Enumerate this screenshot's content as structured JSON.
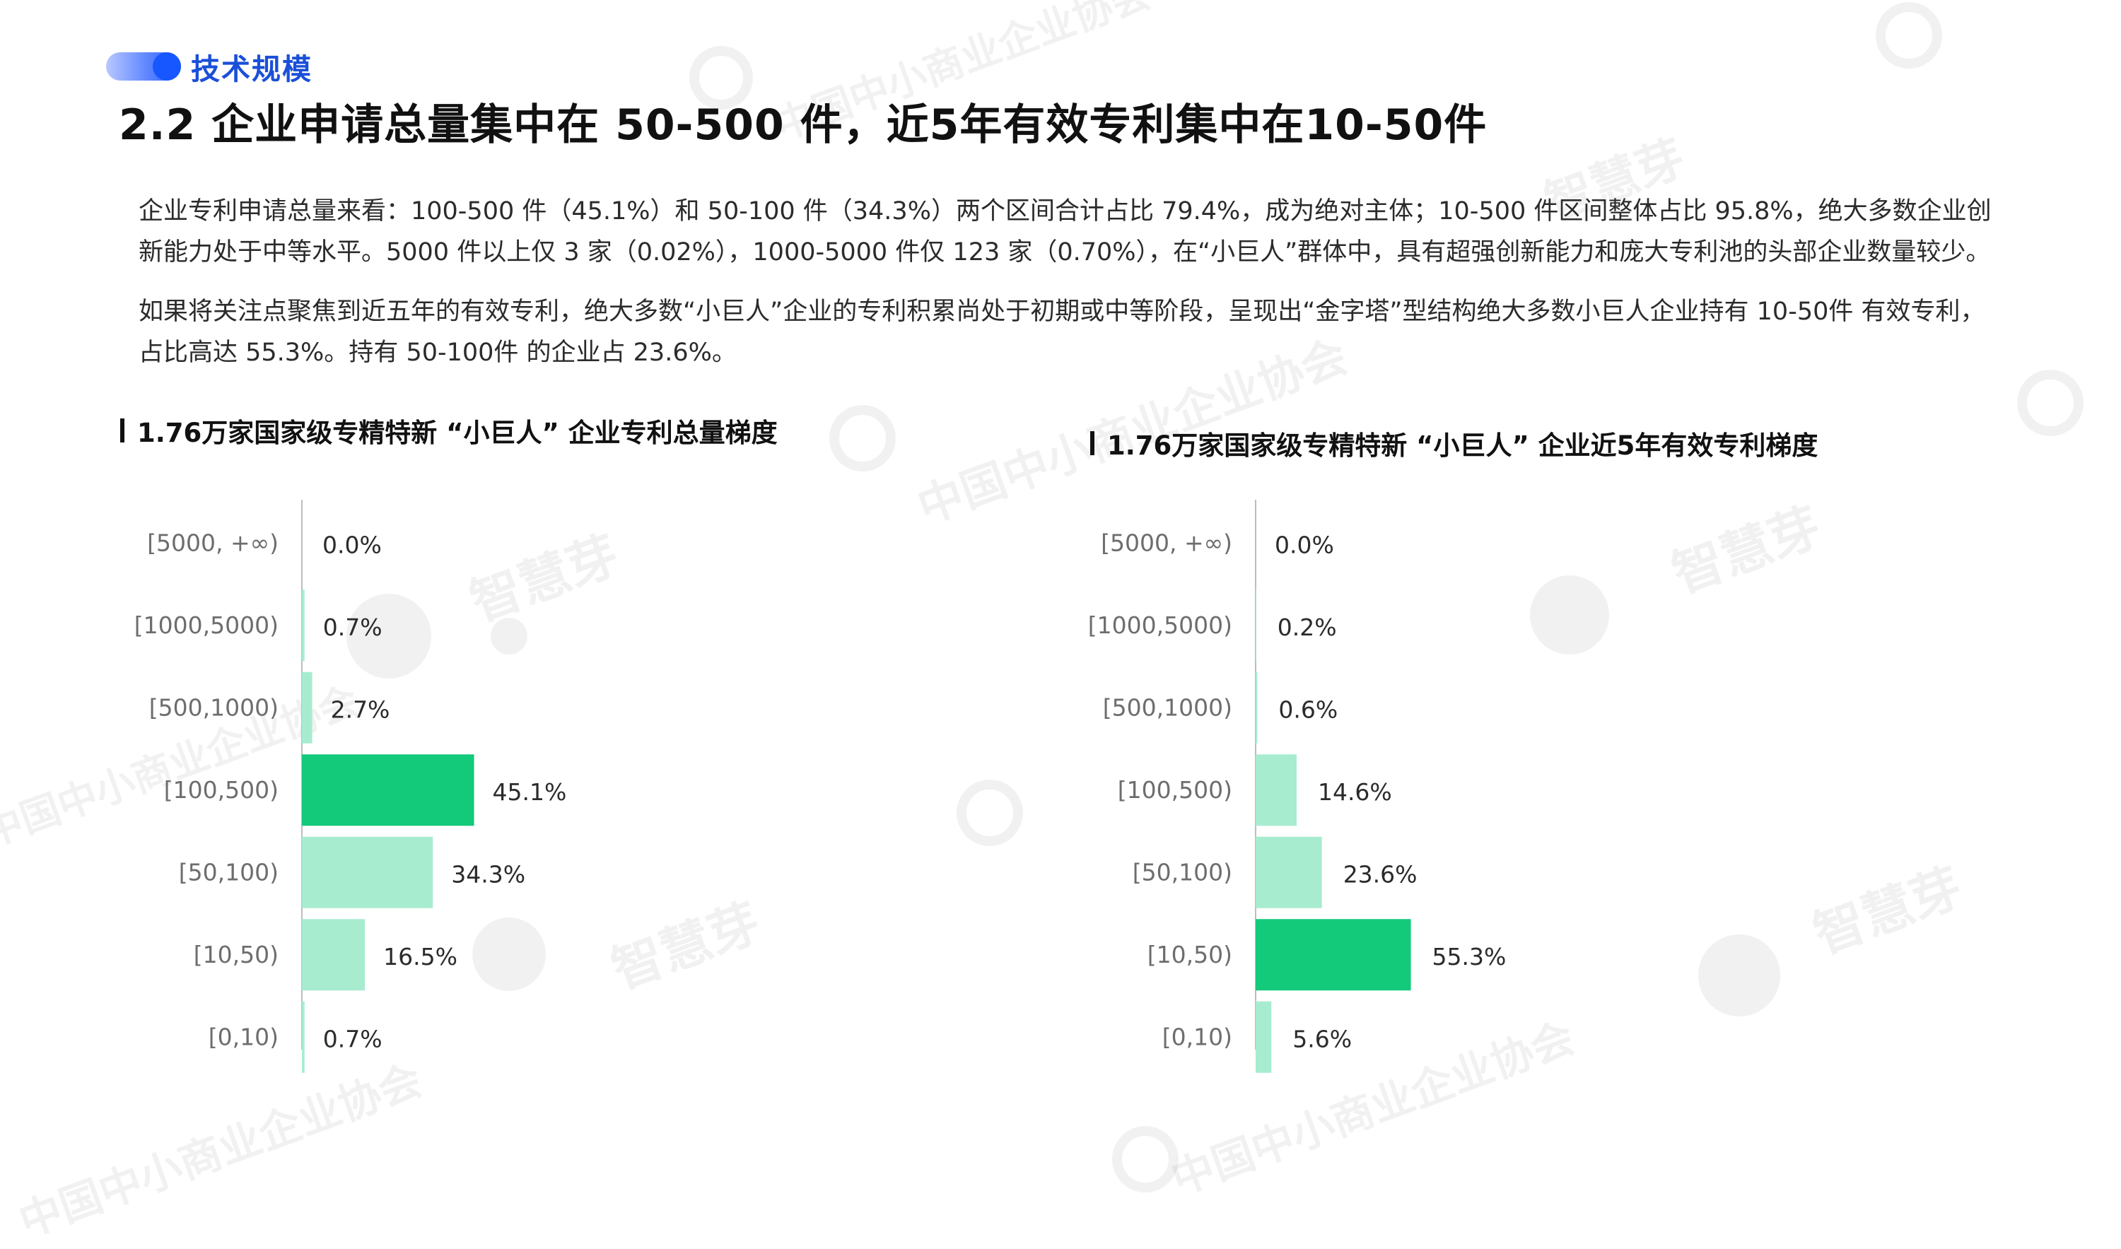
{
  "header": {
    "section_label": "技术规模",
    "title": "2.2 企业申请总量集中在 50-500 件，近5年有效专利集中在10-50件"
  },
  "body": {
    "paragraph1": "企业专利申请总量来看：100-500 件（45.1%）和 50-100 件（34.3%）两个区间合计占比 79.4%，成为绝对主体；10-500 件区间整体占比 95.8%，绝大多数企业创新能力处于中等水平。5000 件以上仅 3 家（0.02%），1000-5000 件仅 123 家（0.70%），在“小巨人”群体中，具有超强创新能力和庞大专利池的头部企业数量较少。",
    "paragraph2": "如果将关注点聚焦到近五年的有效专利，绝大多数“小巨人”企业的专利积累尚处于初期或中等阶段，呈现出“金字塔”型结构绝大多数小巨人企业持有 10-50件 有效专利，占比高达 55.3%。持有 50-100件 的企业占 23.6%。"
  },
  "watermarks": {
    "org": "中国中小商业企业协会",
    "brand": "智慧芽"
  },
  "colors": {
    "accent_blue": "#1757ff",
    "highlight_bar": "#13c97a",
    "normal_bar": "#a8ecd0"
  },
  "chart_data": [
    {
      "type": "bar",
      "orientation": "horizontal",
      "title": "1.76万家国家级专精特新 “小巨人” 企业专利总量梯度",
      "categories": [
        "[5000, +∞)",
        "[1000,5000)",
        "[500,1000)",
        "[100,500)",
        "[50,100)",
        "[10,50)",
        "[0,10)"
      ],
      "values": [
        0.0,
        0.7,
        2.7,
        45.1,
        34.3,
        16.5,
        0.7
      ],
      "labels": [
        "0.0%",
        "0.7%",
        "2.7%",
        "45.1%",
        "34.3%",
        "16.5%",
        "0.7%"
      ],
      "highlight_index": 3,
      "xlim": [
        0,
        50
      ],
      "grid": false
    },
    {
      "type": "bar",
      "orientation": "horizontal",
      "title": "1.76万家国家级专精特新 “小巨人” 企业近5年有效专利梯度",
      "categories": [
        "[5000, +∞)",
        "[1000,5000)",
        "[500,1000)",
        "[100,500)",
        "[50,100)",
        "[10,50)",
        "[0,10)"
      ],
      "values": [
        0.0,
        0.2,
        0.6,
        14.6,
        23.6,
        55.3,
        5.6
      ],
      "labels": [
        "0.0%",
        "0.2%",
        "0.6%",
        "14.6%",
        "23.6%",
        "55.3%",
        "5.6%"
      ],
      "highlight_index": 5,
      "xlim": [
        0,
        60
      ],
      "grid": false
    }
  ]
}
